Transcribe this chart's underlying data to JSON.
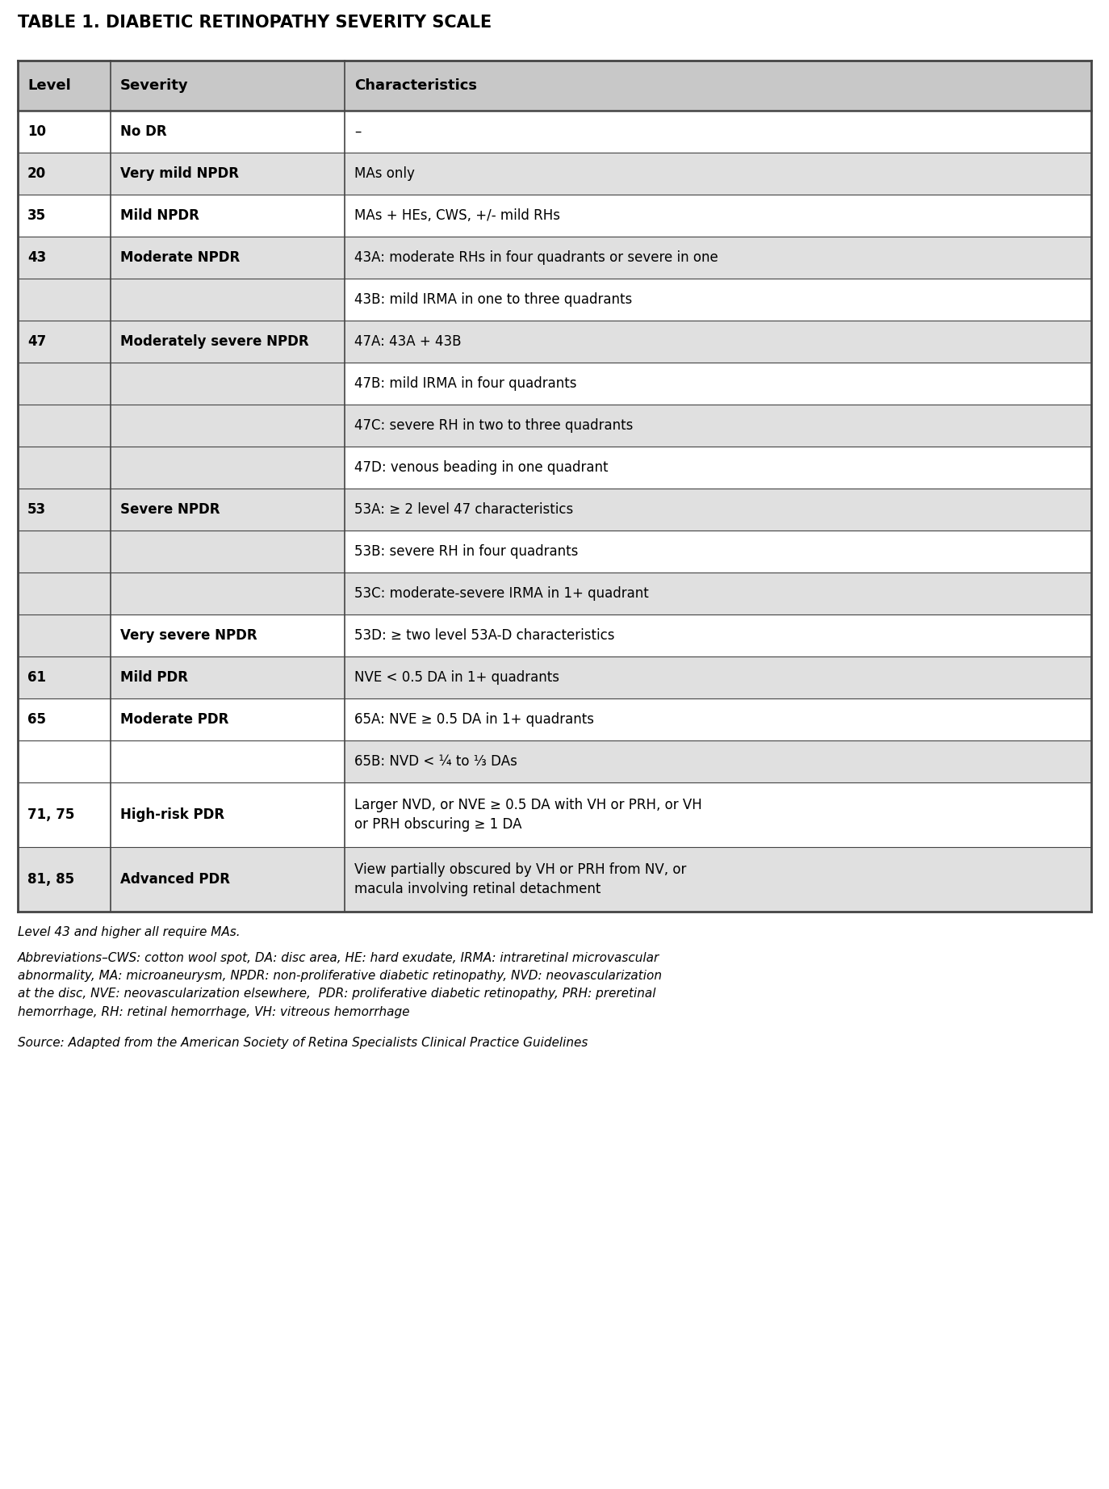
{
  "title": "TABLE 1. DIABETIC RETINOPATHY SEVERITY SCALE",
  "col_headers": [
    "Level",
    "Severity",
    "Characteristics"
  ],
  "rows": [
    {
      "level": "10",
      "severity": "No DR",
      "characteristics": "–",
      "shade_level": false,
      "shade_sev": false,
      "shade_char": false
    },
    {
      "level": "20",
      "severity": "Very mild NPDR",
      "characteristics": "MAs only",
      "shade_level": true,
      "shade_sev": true,
      "shade_char": true
    },
    {
      "level": "35",
      "severity": "Mild NPDR",
      "characteristics": "MAs + HEs, CWS, +/- mild RHs",
      "shade_level": false,
      "shade_sev": false,
      "shade_char": false
    },
    {
      "level": "43",
      "severity": "Moderate NPDR",
      "characteristics": "43A: moderate RHs in four quadrants or severe in one",
      "shade_level": true,
      "shade_sev": true,
      "shade_char": true
    },
    {
      "level": "",
      "severity": "",
      "characteristics": "43B: mild IRMA in one to three quadrants",
      "shade_level": true,
      "shade_sev": true,
      "shade_char": false
    },
    {
      "level": "47",
      "severity": "Moderately severe NPDR",
      "characteristics": "47A: 43A + 43B",
      "shade_level": true,
      "shade_sev": true,
      "shade_char": true
    },
    {
      "level": "",
      "severity": "",
      "characteristics": "47B: mild IRMA in four quadrants",
      "shade_level": true,
      "shade_sev": true,
      "shade_char": false
    },
    {
      "level": "",
      "severity": "",
      "characteristics": "47C: severe RH in two to three quadrants",
      "shade_level": true,
      "shade_sev": true,
      "shade_char": true
    },
    {
      "level": "",
      "severity": "",
      "characteristics": "47D: venous beading in one quadrant",
      "shade_level": true,
      "shade_sev": true,
      "shade_char": false
    },
    {
      "level": "53",
      "severity": "Severe NPDR",
      "characteristics": "53A: ≥ 2 level 47 characteristics",
      "shade_level": true,
      "shade_sev": true,
      "shade_char": true
    },
    {
      "level": "",
      "severity": "",
      "characteristics": "53B: severe RH in four quadrants",
      "shade_level": true,
      "shade_sev": true,
      "shade_char": false
    },
    {
      "level": "",
      "severity": "",
      "characteristics": "53C: moderate-severe IRMA in 1+ quadrant",
      "shade_level": true,
      "shade_sev": true,
      "shade_char": true
    },
    {
      "level": "",
      "severity": "Very severe NPDR",
      "characteristics": "53D: ≥ two level 53A-D characteristics",
      "shade_level": true,
      "shade_sev": false,
      "shade_char": false
    },
    {
      "level": "61",
      "severity": "Mild PDR",
      "characteristics": "NVE < 0.5 DA in 1+ quadrants",
      "shade_level": true,
      "shade_sev": true,
      "shade_char": true
    },
    {
      "level": "65",
      "severity": "Moderate PDR",
      "characteristics": "65A: NVE ≥ 0.5 DA in 1+ quadrants",
      "shade_level": false,
      "shade_sev": false,
      "shade_char": false
    },
    {
      "level": "",
      "severity": "",
      "characteristics": "65B: NVD < ¼ to ⅓ DAs",
      "shade_level": false,
      "shade_sev": false,
      "shade_char": true
    },
    {
      "level": "71, 75",
      "severity": "High-risk PDR",
      "characteristics": "Larger NVD, or NVE ≥ 0.5 DA with VH or PRH, or VH\nor PRH obscuring ≥ 1 DA",
      "shade_level": false,
      "shade_sev": false,
      "shade_char": false
    },
    {
      "level": "81, 85",
      "severity": "Advanced PDR",
      "characteristics": "View partially obscured by VH or PRH from NV, or\nmacula involving retinal detachment",
      "shade_level": true,
      "shade_sev": true,
      "shade_char": true
    }
  ],
  "footnote1": "Level 43 and higher all require MAs.",
  "footnote2": "Abbreviations–CWS: cotton wool spot, DA: disc area, HE: hard exudate, IRMA: intraretinal microvascular\nabnormality, MA: microaneurysm, NPDR: non-proliferative diabetic retinopathy, NVD: neovascularization\nat the disc, NVE: neovascularization elsewhere,  PDR: proliferative diabetic retinopathy, PRH: preretinal\nhemorrhage, RH: retinal hemorrhage, VH: vitreous hemorrhage",
  "footnote3": "Source: Adapted from the American Society of Retina Specialists Clinical Practice Guidelines",
  "bg_color": "#ffffff",
  "header_bg": "#c8c8c8",
  "shade_color": "#e0e0e0",
  "white_color": "#ffffff",
  "border_color": "#444444",
  "text_color": "#000000",
  "title_fs": 15,
  "header_fs": 13,
  "body_fs": 12,
  "footnote_fs": 11
}
